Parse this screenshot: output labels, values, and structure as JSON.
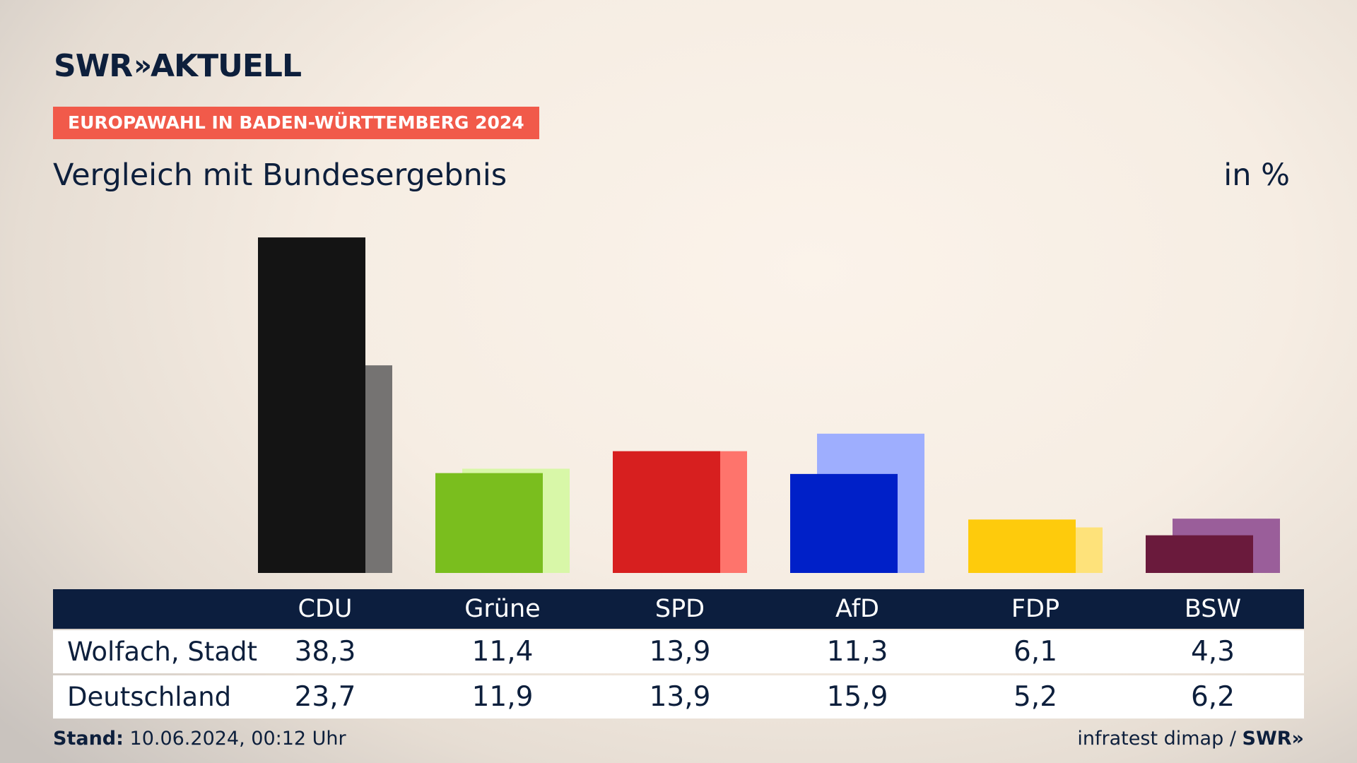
{
  "brand": {
    "logo_text": "SWR",
    "logo_chevron": "»",
    "logo_suffix": "AKTUELL"
  },
  "badge": "EUROPAWAHL IN BADEN-WÜRTTEMBERG 2024",
  "subtitle": "Vergleich mit Bundesergebnis",
  "unit": "in %",
  "chart_data": {
    "type": "bar",
    "categories": [
      "CDU",
      "Grüne",
      "SPD",
      "AfD",
      "FDP",
      "BSW"
    ],
    "series": [
      {
        "name": "Wolfach, Stadt",
        "values": [
          38.3,
          11.4,
          13.9,
          11.3,
          6.1,
          4.3
        ]
      },
      {
        "name": "Deutschland",
        "values": [
          23.7,
          11.9,
          13.9,
          15.9,
          5.2,
          6.2
        ]
      }
    ],
    "colors_primary": [
      "#141414",
      "#7abe1e",
      "#d71f1f",
      "#0020c8",
      "#fecb0c",
      "#6a1a3c"
    ],
    "colors_secondary": [
      "#757372",
      "#d8f7a8",
      "#fe746c",
      "#9eaefe",
      "#fee27a",
      "#9a5e9a"
    ],
    "ylim": [
      0,
      40
    ]
  },
  "table": {
    "headers": [
      "CDU",
      "Grüne",
      "SPD",
      "AfD",
      "FDP",
      "BSW"
    ],
    "rows": [
      {
        "label": "Wolfach, Stadt",
        "values": [
          "38,3",
          "11,4",
          "13,9",
          "11,3",
          "6,1",
          "4,3"
        ]
      },
      {
        "label": "Deutschland",
        "values": [
          "23,7",
          "11,9",
          "13,9",
          "15,9",
          "5,2",
          "6,2"
        ]
      }
    ]
  },
  "footer": {
    "stand_label": "Stand:",
    "stand_value": "10.06.2024, 00:12 Uhr",
    "source": "infratest dimap /",
    "source_brand": "SWR»"
  }
}
